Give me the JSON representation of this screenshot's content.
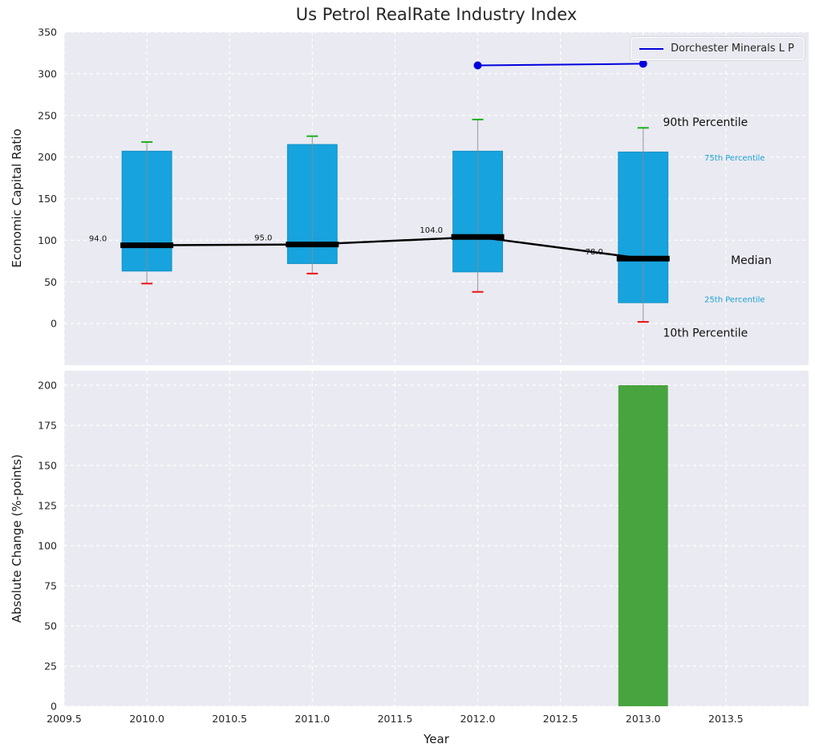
{
  "title": "Us Petrol RealRate Industry Index",
  "colors": {
    "panel_background": "#eaeaf2",
    "grid": "#ffffff",
    "box_fill": "#17a3dd",
    "box_edge": "#1693c6",
    "whisker": "#8a8a8a",
    "cap_top": "#19b219",
    "cap_bottom": "#ee1111",
    "median": "#000000",
    "company_line": "#0000dd",
    "bar_green": "#48a43e",
    "percentile_small": "#18a0d0",
    "annotation_dark": "#111111",
    "tick_text": "#262626"
  },
  "chart_data": [
    {
      "type": "boxplot+line",
      "title": "Us Petrol RealRate Industry Index",
      "ylabel": "Economic Capital Ratio",
      "ylim": [
        -50,
        350
      ],
      "xlim": [
        2009.5,
        2014.0
      ],
      "grid": true,
      "legend_position": "upper right",
      "yticks": [
        {
          "value": 0,
          "label": "0"
        },
        {
          "value": 50,
          "label": "50"
        },
        {
          "value": 100,
          "label": "100"
        },
        {
          "value": 150,
          "label": "150"
        },
        {
          "value": 200,
          "label": "200"
        },
        {
          "value": 250,
          "label": "250"
        },
        {
          "value": 300,
          "label": "300"
        },
        {
          "value": 350,
          "label": "350"
        }
      ],
      "boxes": [
        {
          "year": 2010,
          "p10": 48,
          "q25": 63,
          "median": 94,
          "q75": 207,
          "p90": 218,
          "label": "94.0"
        },
        {
          "year": 2011,
          "p10": 60,
          "q25": 72,
          "median": 95,
          "q75": 215,
          "p90": 225,
          "label": "95.0"
        },
        {
          "year": 2012,
          "p10": 38,
          "q25": 62,
          "median": 104,
          "q75": 207,
          "p90": 245,
          "label": "104.0"
        },
        {
          "year": 2013,
          "p10": 2,
          "q25": 25,
          "median": 78,
          "q75": 206,
          "p90": 235,
          "label": "78.0"
        }
      ],
      "median_line": {
        "x": [
          2010,
          2011,
          2012,
          2013
        ],
        "y": [
          94,
          95,
          104,
          78
        ]
      },
      "series": [
        {
          "name": "Dorchester Minerals L P",
          "x": [
            2012,
            2013
          ],
          "y": [
            310,
            312
          ]
        }
      ],
      "annotations": [
        {
          "text": "90th Percentile",
          "x": 2013.12,
          "y": 242,
          "size": 14,
          "style": "dark"
        },
        {
          "text": "75th Percentile",
          "x": 2013.37,
          "y": 199,
          "size": 10,
          "style": "small-blue"
        },
        {
          "text": "Median",
          "x": 2013.53,
          "y": 76,
          "size": 14,
          "style": "dark"
        },
        {
          "text": "25th Percentile",
          "x": 2013.37,
          "y": 29,
          "size": 10,
          "style": "small-blue"
        },
        {
          "text": "10th Percentile",
          "x": 2013.12,
          "y": -11,
          "size": 14,
          "style": "dark"
        }
      ]
    },
    {
      "type": "bar",
      "ylabel": "Absolute Change (%-points)",
      "xlabel": "Year",
      "ylim": [
        0,
        209
      ],
      "xlim": [
        2009.5,
        2014.0
      ],
      "grid": true,
      "yticks": [
        {
          "value": 0,
          "label": "0"
        },
        {
          "value": 25,
          "label": "25"
        },
        {
          "value": 50,
          "label": "50"
        },
        {
          "value": 75,
          "label": "75"
        },
        {
          "value": 100,
          "label": "100"
        },
        {
          "value": 125,
          "label": "125"
        },
        {
          "value": 150,
          "label": "150"
        },
        {
          "value": 175,
          "label": "175"
        },
        {
          "value": 200,
          "label": "200"
        }
      ],
      "xticks": [
        {
          "value": 2009.5,
          "label": "2009.5"
        },
        {
          "value": 2010.0,
          "label": "2010.0"
        },
        {
          "value": 2010.5,
          "label": "2010.5"
        },
        {
          "value": 2011.0,
          "label": "2011.0"
        },
        {
          "value": 2011.5,
          "label": "2011.5"
        },
        {
          "value": 2012.0,
          "label": "2012.0"
        },
        {
          "value": 2012.5,
          "label": "2012.5"
        },
        {
          "value": 2013.0,
          "label": "2013.0"
        },
        {
          "value": 2013.5,
          "label": "2013.5"
        }
      ],
      "bars": [
        {
          "year": 2013,
          "value": 200
        }
      ]
    }
  ]
}
